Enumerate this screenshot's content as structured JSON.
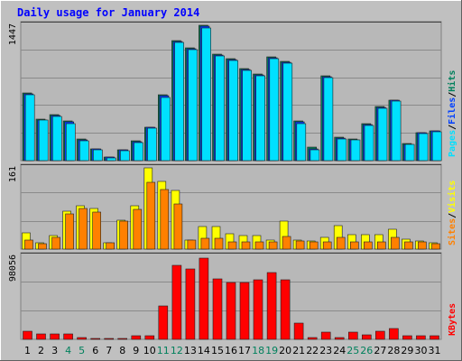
{
  "title": "Daily usage for January 2014",
  "colors": {
    "background": "#c0c0c0",
    "plot_bg": "#b8b8b8",
    "hits": "#00805c",
    "files": "#0040ff",
    "pages": "#00e0ff",
    "visits": "#ffff00",
    "sites": "#ff8000",
    "kbytes": "#ff0000",
    "title": "#0000ff",
    "weekend_day": "#00805c"
  },
  "chart_data": [
    {
      "type": "bar",
      "panel": "hits-files-pages",
      "categories": [
        "1",
        "2",
        "3",
        "4",
        "5",
        "6",
        "7",
        "8",
        "9",
        "10",
        "11",
        "12",
        "13",
        "14",
        "15",
        "16",
        "17",
        "18",
        "19",
        "20",
        "21",
        "22",
        "23",
        "24",
        "25",
        "26",
        "27",
        "28",
        "29",
        "30",
        "31"
      ],
      "ymax_label": "1447",
      "ylim": [
        0,
        1447
      ],
      "legend": [
        "Pages",
        "Files",
        "Hits"
      ],
      "series": [
        {
          "name": "Hits",
          "values": [
            720,
            440,
            490,
            420,
            230,
            130,
            40,
            120,
            210,
            360,
            700,
            1280,
            1210,
            1447,
            1140,
            1090,
            980,
            930,
            1110,
            1060,
            420,
            140,
            910,
            250,
            230,
            400,
            580,
            650,
            180,
            300,
            320
          ]
        },
        {
          "name": "Files",
          "values": [
            710,
            435,
            480,
            410,
            220,
            125,
            35,
            115,
            200,
            355,
            690,
            1270,
            1200,
            1435,
            1130,
            1080,
            970,
            920,
            1100,
            1050,
            410,
            130,
            900,
            240,
            225,
            390,
            570,
            645,
            175,
            295,
            315
          ]
        },
        {
          "name": "Pages",
          "values": [
            700,
            430,
            470,
            400,
            210,
            120,
            30,
            110,
            195,
            350,
            680,
            1260,
            1190,
            1420,
            1120,
            1070,
            960,
            910,
            1090,
            1040,
            400,
            120,
            890,
            230,
            220,
            380,
            560,
            640,
            170,
            290,
            310
          ]
        }
      ]
    },
    {
      "type": "bar",
      "panel": "visits-sites",
      "ymax_label": "161",
      "ylim": [
        0,
        161
      ],
      "legend": [
        "Sites",
        "Visits"
      ],
      "series": [
        {
          "name": "Visits",
          "values": [
            32,
            12,
            26,
            76,
            86,
            80,
            12,
            58,
            85,
            161,
            135,
            116,
            18,
            45,
            45,
            30,
            26,
            26,
            18,
            55,
            18,
            16,
            24,
            46,
            28,
            28,
            28,
            40,
            20,
            16,
            12
          ]
        },
        {
          "name": "Sites",
          "values": [
            18,
            11,
            24,
            70,
            80,
            74,
            12,
            56,
            78,
            132,
            118,
            90,
            18,
            22,
            22,
            15,
            15,
            15,
            14,
            25,
            16,
            14,
            14,
            24,
            14,
            14,
            14,
            24,
            14,
            14,
            10
          ]
        }
      ]
    },
    {
      "type": "bar",
      "panel": "kbytes",
      "ymax_label": "98056",
      "ylim": [
        0,
        98056
      ],
      "legend": [
        "KBytes"
      ],
      "series": [
        {
          "name": "KBytes",
          "values": [
            9500,
            6500,
            6500,
            6500,
            2500,
            1500,
            1500,
            1500,
            4000,
            4000,
            39000,
            87000,
            83000,
            96000,
            71000,
            67000,
            67000,
            70000,
            79000,
            70000,
            19000,
            2000,
            9000,
            2000,
            9000,
            5500,
            10000,
            13000,
            4000,
            4000,
            4000
          ]
        }
      ]
    }
  ],
  "x_labels": [
    {
      "text": "1",
      "weekend": false
    },
    {
      "text": "2",
      "weekend": false
    },
    {
      "text": "3",
      "weekend": false
    },
    {
      "text": "4",
      "weekend": true
    },
    {
      "text": "5",
      "weekend": true
    },
    {
      "text": "6",
      "weekend": false
    },
    {
      "text": "7",
      "weekend": false
    },
    {
      "text": "8",
      "weekend": false
    },
    {
      "text": "9",
      "weekend": false
    },
    {
      "text": "10",
      "weekend": false
    },
    {
      "text": "11",
      "weekend": true
    },
    {
      "text": "12",
      "weekend": true
    },
    {
      "text": "13",
      "weekend": false
    },
    {
      "text": "14",
      "weekend": false
    },
    {
      "text": "15",
      "weekend": false
    },
    {
      "text": "16",
      "weekend": false
    },
    {
      "text": "17",
      "weekend": false
    },
    {
      "text": "18",
      "weekend": true
    },
    {
      "text": "19",
      "weekend": true
    },
    {
      "text": "20",
      "weekend": false
    },
    {
      "text": "21",
      "weekend": false
    },
    {
      "text": "22",
      "weekend": false
    },
    {
      "text": "23",
      "weekend": false
    },
    {
      "text": "24",
      "weekend": false
    },
    {
      "text": "25",
      "weekend": true
    },
    {
      "text": "26",
      "weekend": true
    },
    {
      "text": "27",
      "weekend": false
    },
    {
      "text": "28",
      "weekend": false
    },
    {
      "text": "29",
      "weekend": false
    },
    {
      "text": "30",
      "weekend": false
    },
    {
      "text": "31",
      "weekend": false
    }
  ]
}
